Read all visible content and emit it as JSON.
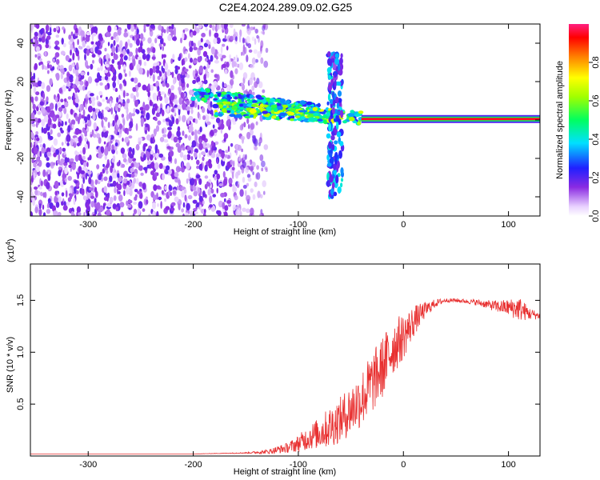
{
  "title": "C2E4.2024.289.09.02.G25",
  "chart_data": [
    {
      "type": "heatmap",
      "xlabel": "Height of straight line (km)",
      "ylabel": "Frequency (Hz)",
      "xlim": [
        -355,
        130
      ],
      "ylim": [
        -50,
        50
      ],
      "xticks": [
        "-300",
        "-200",
        "-100",
        "0",
        "100"
      ],
      "xtick_values": [
        -300,
        -200,
        -100,
        0,
        100
      ],
      "yticks": [
        "-40",
        "-20",
        "0",
        "20",
        "40"
      ],
      "ytick_values": [
        -40,
        -20,
        0,
        20,
        40
      ],
      "colorbar": {
        "label": "Normalized spectral amplitude",
        "ticks": [
          "0.0",
          "0.2",
          "0.4",
          "0.6",
          "0.8"
        ],
        "tick_values": [
          0.0,
          0.2,
          0.4,
          0.6,
          0.8
        ],
        "range": [
          0,
          1
        ],
        "colormap": "rainbow"
      },
      "features": [
        {
          "name": "diffuse-noise",
          "x_range": [
            -355,
            -130
          ],
          "freq_range": [
            -50,
            50
          ],
          "amplitude": 0.12
        },
        {
          "name": "upper-branch",
          "x_range": [
            -200,
            -80
          ],
          "freq_range": [
            8,
            16
          ],
          "amplitude": 0.35
        },
        {
          "name": "converging-branch",
          "x_range": [
            -180,
            -40
          ],
          "freq_range": [
            0,
            10
          ],
          "amplitude": 0.45
        },
        {
          "name": "vertical-streak",
          "x": -65,
          "freq_range": [
            -40,
            35
          ],
          "amplitude": 0.25
        },
        {
          "name": "carrier-line",
          "x_range": [
            -40,
            130
          ],
          "freq": 0.5,
          "amplitude": 0.95
        }
      ]
    },
    {
      "type": "line",
      "xlabel": "Height of straight line (km)",
      "ylabel": "SNR (10 * v/v)",
      "y_multiplier": "(x10",
      "y_multiplier_exp": "4",
      "y_multiplier_close": ")",
      "xlim": [
        -355,
        130
      ],
      "ylim": [
        0,
        1.85
      ],
      "xticks": [
        "-300",
        "-200",
        "-100",
        "0",
        "100"
      ],
      "xtick_values": [
        -300,
        -200,
        -100,
        0,
        100
      ],
      "yticks": [
        "0.5",
        "1.0",
        "1.5"
      ],
      "ytick_values": [
        0.5,
        1.0,
        1.5
      ],
      "line_color": "#e83030",
      "series": [
        {
          "x": [
            -355,
            -300,
            -250,
            -200,
            -150,
            -130,
            -110,
            -100,
            -90,
            -80,
            -70,
            -60,
            -50,
            -40,
            -30,
            -20,
            -10,
            0,
            10,
            20,
            30,
            40,
            50,
            60,
            70,
            80,
            90,
            100,
            110,
            120,
            130
          ],
          "values": [
            0.02,
            0.02,
            0.02,
            0.02,
            0.03,
            0.04,
            0.08,
            0.12,
            0.18,
            0.22,
            0.28,
            0.35,
            0.45,
            0.55,
            0.7,
            0.85,
            1.05,
            1.15,
            1.3,
            1.4,
            1.47,
            1.5,
            1.5,
            1.49,
            1.48,
            1.46,
            1.44,
            1.43,
            1.42,
            1.37,
            1.35
          ],
          "noise": [
            0,
            0,
            0,
            0,
            0.005,
            0.02,
            0.05,
            0.08,
            0.12,
            0.15,
            0.2,
            0.22,
            0.25,
            0.28,
            0.3,
            0.3,
            0.28,
            0.22,
            0.15,
            0.08,
            0.04,
            0.02,
            0.02,
            0.02,
            0.03,
            0.04,
            0.06,
            0.08,
            0.12,
            0.06,
            0.03
          ]
        }
      ]
    }
  ]
}
